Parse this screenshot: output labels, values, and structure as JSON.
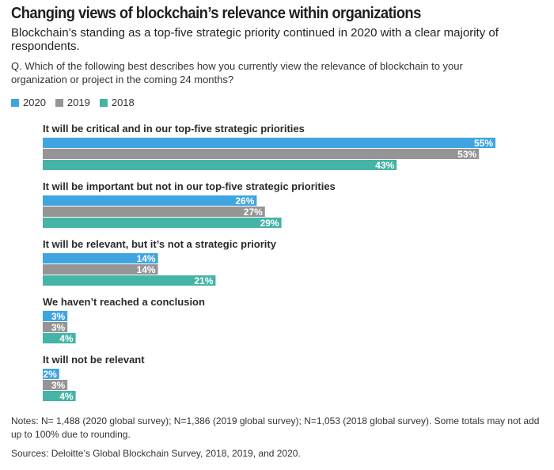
{
  "title": "Changing views of blockchain’s relevance within organizations",
  "subtitle": "Blockchain’s standing as a top-five strategic priority continued in 2020 with a clear majority of respondents.",
  "question": "Q. Which of the following best describes how you currently view the relevance of blockchain to your organization or project in the coming 24 months?",
  "notes": "Notes: N= 1,488 (2020 global survey); N=1,386 (2019 global survey); N=1,053 (2018 global survey). Some totals may not add up to 100% due to rounding.",
  "sources": "Sources: Deloitte’s Global Blockchain Survey, 2018, 2019, and 2020.",
  "chart_data": {
    "type": "bar",
    "orientation": "horizontal",
    "categories": [
      "It will be critical and in our top-five strategic priorities",
      "It will be important but not in our top-five strategic priorities",
      "It will be relevant, but it’s not a strategic priority",
      "We haven’t reached a conclusion",
      "It will not be relevant"
    ],
    "series": [
      {
        "name": "2020",
        "color": "#3fa5e0",
        "values": [
          55,
          26,
          14,
          3,
          2
        ]
      },
      {
        "name": "2019",
        "color": "#959595",
        "values": [
          53,
          27,
          14,
          3,
          3
        ]
      },
      {
        "name": "2018",
        "color": "#45b3a6",
        "values": [
          43,
          29,
          21,
          4,
          4
        ]
      }
    ],
    "value_suffix": "%",
    "legend_position": "top-left",
    "grid": false
  }
}
